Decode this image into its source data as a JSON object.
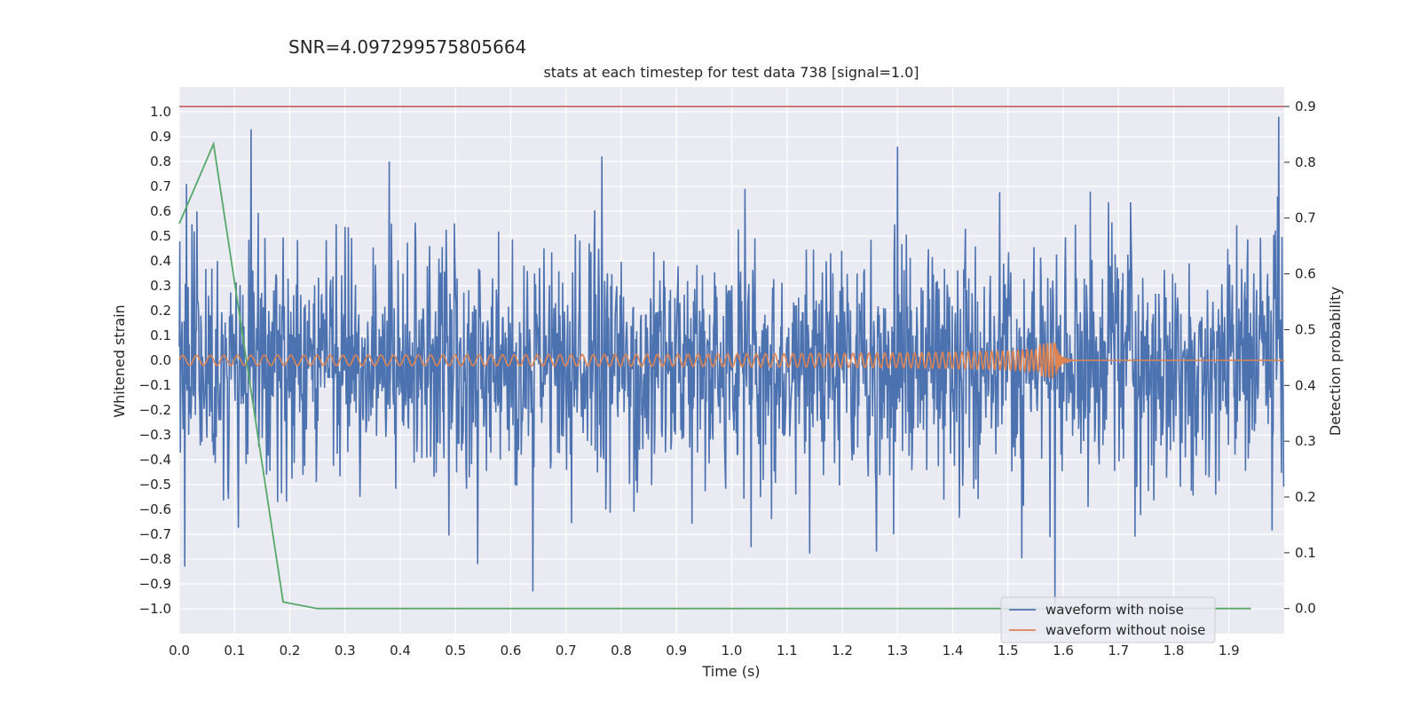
{
  "suptitle": "SNR=4.097299575805664",
  "chart_data": {
    "type": "line",
    "title": "stats at each timestep for test data 738 [signal=1.0]",
    "xlabel": "Time (s)",
    "ylabel": "Whitened strain",
    "y2label": "Detection probability",
    "xlim": [
      0,
      2.0
    ],
    "ylim": [
      -1.1,
      1.1
    ],
    "y2lim": [
      -0.045,
      0.935
    ],
    "x_ticks": [
      "0.0",
      "0.1",
      "0.2",
      "0.3",
      "0.4",
      "0.5",
      "0.6",
      "0.7",
      "0.8",
      "0.9",
      "1.0",
      "1.1",
      "1.2",
      "1.3",
      "1.4",
      "1.5",
      "1.6",
      "1.7",
      "1.8",
      "1.9"
    ],
    "y_ticks": [
      "1.0",
      "0.9",
      "0.8",
      "0.7",
      "0.6",
      "0.5",
      "0.4",
      "0.3",
      "0.2",
      "0.1",
      "0.0",
      "−0.1",
      "−0.2",
      "−0.3",
      "−0.4",
      "−0.5",
      "−0.6",
      "−0.7",
      "−0.8",
      "−0.9",
      "−1.0"
    ],
    "y2_ticks": [
      "0.9",
      "0.8",
      "0.7",
      "0.6",
      "0.5",
      "0.4",
      "0.3",
      "0.2",
      "0.1",
      "0.0"
    ],
    "grid": true,
    "legend_position": "lower-right",
    "series": [
      {
        "name": "waveform with noise",
        "color": "#4c72b0",
        "axis": "left",
        "description": "noisy whitened strain, amplitude mostly within ±0.5 with spikes to about ±0.95",
        "peaks": [
          {
            "x": 0.013,
            "y": 0.71
          },
          {
            "x": 0.01,
            "y": -0.83
          },
          {
            "x": 0.13,
            "y": 0.93
          },
          {
            "x": 0.178,
            "y": -0.57
          },
          {
            "x": 0.38,
            "y": 0.8
          },
          {
            "x": 0.64,
            "y": -0.93
          },
          {
            "x": 1.3,
            "y": 0.86
          },
          {
            "x": 1.585,
            "y": -0.98
          },
          {
            "x": 1.99,
            "y": 0.98
          }
        ]
      },
      {
        "name": "waveform without noise",
        "color": "#dd8452",
        "axis": "left",
        "description": "chirp: small-amplitude oscillation (~±0.02) increasing in frequency and amplitude up to merger near t=1.58 s (peak ~0.14), then flat at 0"
      },
      {
        "name": "",
        "color": "#55a868",
        "axis": "right",
        "x": [
          0.0,
          0.062,
          0.188,
          0.25,
          1.94
        ],
        "y": [
          0.69,
          0.833,
          0.012,
          0.0,
          0.0
        ]
      }
    ],
    "threshold": {
      "axis": "right",
      "value": 0.9,
      "color": "#c44e52"
    }
  }
}
